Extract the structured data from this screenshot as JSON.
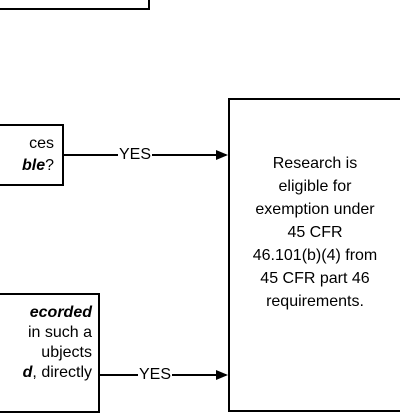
{
  "boxes": {
    "top": {
      "text": ""
    },
    "question_1": {
      "line1": "ces",
      "line2_bold": "ble",
      "line2_tail": "?"
    },
    "question_2": {
      "line1_bold": "ecorded",
      "line2": " in such a",
      "line3": "ubjects",
      "line4_bold": "d",
      "line4_tail": ", directly"
    },
    "result": {
      "lines": [
        "Research is",
        "eligible for",
        "exemption under",
        "45 CFR",
        "46.101(b)(4) from",
        "45 CFR part 46",
        "requirements."
      ]
    }
  },
  "connectors": {
    "yes_1": "YES",
    "yes_2": "YES"
  }
}
